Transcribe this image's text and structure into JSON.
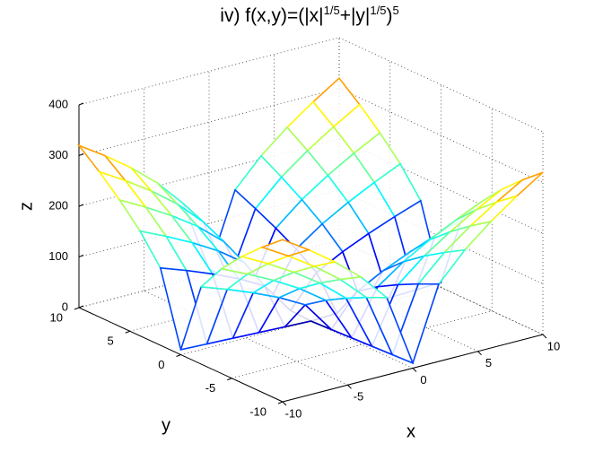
{
  "chart_data": {
    "type": "mesh",
    "colormap": "jet",
    "title": [
      "iv)  f(x,y)=(|x|",
      "1/5",
      "+|y|",
      "1/5",
      ")",
      "5"
    ],
    "xlabel": "x",
    "ylabel": "y",
    "zlabel": "z",
    "x": [
      -10,
      -8,
      -6,
      -4,
      -2,
      0,
      2,
      4,
      6,
      8,
      10
    ],
    "y": [
      -10,
      -8,
      -6,
      -4,
      -2,
      0,
      2,
      4,
      6,
      8,
      10
    ],
    "z": [
      [
        320,
        286.6,
        249.5,
        206.7,
        152.6,
        10,
        152.6,
        206.7,
        249.5,
        286.6,
        320
      ],
      [
        286.6,
        256,
        222.2,
        183.2,
        134.3,
        8,
        134.3,
        183.2,
        222.2,
        256,
        286.6
      ],
      [
        249.5,
        222.2,
        192,
        157.4,
        114.3,
        6,
        114.3,
        157.4,
        192,
        222.2,
        249.5
      ],
      [
        206.7,
        183.2,
        157.4,
        128,
        91.6,
        4,
        91.6,
        128,
        157.4,
        183.2,
        206.7
      ],
      [
        152.6,
        134.3,
        114.3,
        91.6,
        64,
        2,
        64,
        91.6,
        114.3,
        134.3,
        152.6
      ],
      [
        10,
        8,
        6,
        4,
        2,
        0,
        2,
        4,
        6,
        8,
        10
      ],
      [
        152.6,
        134.3,
        114.3,
        91.6,
        64,
        2,
        64,
        91.6,
        114.3,
        134.3,
        152.6
      ],
      [
        206.7,
        183.2,
        157.4,
        128,
        91.6,
        4,
        91.6,
        128,
        157.4,
        183.2,
        206.7
      ],
      [
        249.5,
        222.2,
        192,
        157.4,
        114.3,
        6,
        114.3,
        157.4,
        192,
        222.2,
        249.5
      ],
      [
        286.6,
        256,
        222.2,
        183.2,
        134.3,
        8,
        134.3,
        183.2,
        222.2,
        256,
        286.6
      ],
      [
        320,
        286.6,
        249.5,
        206.7,
        152.6,
        10,
        152.6,
        206.7,
        249.5,
        286.6,
        320
      ]
    ],
    "xlim": [
      -10,
      10
    ],
    "ylim": [
      -10,
      10
    ],
    "zlim": [
      0,
      400
    ],
    "xticks": [
      -10,
      -5,
      0,
      5,
      10
    ],
    "yticks": [
      -10,
      -5,
      0,
      5,
      10
    ],
    "zticks": [
      0,
      100,
      200,
      300,
      400
    ],
    "grid": true
  }
}
